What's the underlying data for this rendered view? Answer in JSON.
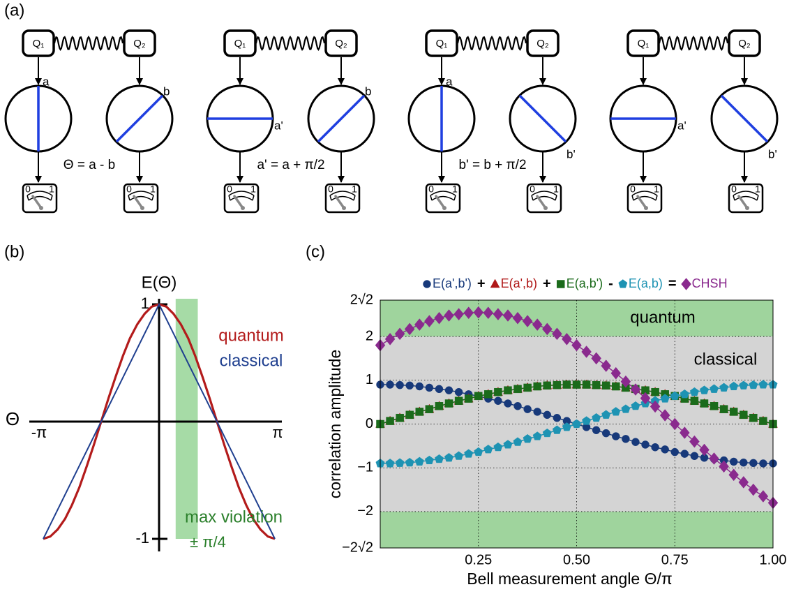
{
  "figure": {
    "panel_labels": [
      "(a)",
      "(b)",
      "(c)"
    ]
  },
  "diagram": {
    "qubits": [
      "Q₁",
      "Q₂"
    ],
    "meter_labels": [
      "0",
      "1"
    ],
    "setups": [
      {
        "left": "a",
        "right": "b"
      },
      {
        "left": "a'",
        "right": "b"
      },
      {
        "left": "a",
        "right": "b'"
      },
      {
        "left": "a'",
        "right": "b'"
      }
    ],
    "equations": [
      "Θ = a - b",
      "a' = a + π/2",
      "b' = b + π/2"
    ]
  },
  "chart_data": [
    {
      "type": "curve",
      "title": "E(Θ)",
      "xlabel": "Θ",
      "xlim": [
        -3.14,
        3.14
      ],
      "ylim": [
        -1,
        1
      ],
      "xticks": [
        {
          "value": -3.14,
          "label": "-π"
        },
        {
          "value": 3.14,
          "label": "π"
        }
      ],
      "yticks": [
        1,
        -1
      ],
      "band": {
        "x": [
          0.45,
          1.05
        ],
        "color": "#a6dba6",
        "label": "max violation",
        "sublabel": "± π/4",
        "label_color": "#2a7f2a"
      },
      "series": [
        {
          "name": "quantum",
          "color": "#b31b1b",
          "x": [
            -3.14,
            -2.95,
            -2.75,
            -2.55,
            -2.36,
            -2.16,
            -1.96,
            -1.77,
            -1.57,
            -1.37,
            -1.18,
            -0.98,
            -0.79,
            -0.59,
            -0.39,
            -0.2,
            0,
            0.2,
            0.39,
            0.59,
            0.79,
            0.98,
            1.18,
            1.37,
            1.57,
            1.77,
            1.96,
            2.16,
            2.36,
            2.55,
            2.75,
            2.95,
            3.14
          ],
          "values": [
            -1,
            -0.98,
            -0.92,
            -0.83,
            -0.71,
            -0.56,
            -0.38,
            -0.2,
            0,
            0.2,
            0.38,
            0.56,
            0.71,
            0.83,
            0.92,
            0.98,
            1,
            0.98,
            0.92,
            0.83,
            0.71,
            0.56,
            0.38,
            0.2,
            0,
            -0.2,
            -0.38,
            -0.56,
            -0.71,
            -0.83,
            -0.92,
            -0.98,
            -1
          ]
        },
        {
          "name": "classical",
          "color": "#1f3f8f",
          "x": [
            -3.14,
            0,
            3.14
          ],
          "values": [
            -1,
            1,
            -1
          ]
        }
      ]
    },
    {
      "type": "line",
      "xlabel": "Bell measurement angle Θ/π",
      "ylabel": "correlation amplitude",
      "xlim": [
        0,
        1
      ],
      "ylim": [
        -2.83,
        2.83
      ],
      "xticks": [
        0.25,
        {
          "value": 0.5,
          "label": "0.50"
        },
        0.75,
        {
          "value": 1,
          "label": "1.00"
        }
      ],
      "yticks": [
        {
          "value": -2.83,
          "label": "−2√2"
        },
        {
          "value": -2,
          "label": "−2"
        },
        {
          "value": -1,
          "label": "−1"
        },
        0,
        1,
        2,
        {
          "value": 2.83,
          "label": "2√2"
        }
      ],
      "grid": true,
      "regions": [
        {
          "range": [
            2,
            2.83
          ],
          "color": "#9fd49d",
          "label": "quantum"
        },
        {
          "range": [
            -2,
            2
          ],
          "color": "#d4d4d4",
          "label": "classical"
        },
        {
          "range": [
            -2.83,
            -2
          ],
          "color": "#9fd49d"
        }
      ],
      "legend_operators": [
        "+",
        "+",
        "-",
        "="
      ],
      "x": [
        0,
        0.025,
        0.05,
        0.075,
        0.1,
        0.125,
        0.15,
        0.175,
        0.2,
        0.225,
        0.25,
        0.275,
        0.3,
        0.325,
        0.35,
        0.375,
        0.4,
        0.425,
        0.45,
        0.475,
        0.5,
        0.525,
        0.55,
        0.575,
        0.6,
        0.625,
        0.65,
        0.675,
        0.7,
        0.725,
        0.75,
        0.775,
        0.8,
        0.825,
        0.85,
        0.875,
        0.9,
        0.925,
        0.95,
        0.975,
        1
      ],
      "series": [
        {
          "name": "E(a',b')",
          "color": "#17397a",
          "marker": "circle",
          "values": [
            0.9,
            0.9,
            0.89,
            0.88,
            0.86,
            0.83,
            0.8,
            0.77,
            0.73,
            0.68,
            0.64,
            0.58,
            0.53,
            0.47,
            0.41,
            0.34,
            0.28,
            0.21,
            0.14,
            0.07,
            0,
            -0.07,
            -0.14,
            -0.21,
            -0.28,
            -0.34,
            -0.41,
            -0.47,
            -0.53,
            -0.58,
            -0.64,
            -0.68,
            -0.73,
            -0.77,
            -0.8,
            -0.83,
            -0.86,
            -0.88,
            -0.89,
            -0.9,
            -0.9
          ]
        },
        {
          "name": "E(a',b)",
          "color": "#b01818",
          "marker": "triangle",
          "values": [
            0,
            0.07,
            0.14,
            0.21,
            0.28,
            0.34,
            0.41,
            0.47,
            0.53,
            0.58,
            0.64,
            0.68,
            0.73,
            0.77,
            0.8,
            0.83,
            0.86,
            0.88,
            0.89,
            0.9,
            0.9,
            0.9,
            0.89,
            0.88,
            0.86,
            0.83,
            0.8,
            0.77,
            0.73,
            0.68,
            0.64,
            0.58,
            0.53,
            0.47,
            0.41,
            0.34,
            0.28,
            0.21,
            0.14,
            0.07,
            0
          ]
        },
        {
          "name": "E(a,b')",
          "color": "#1b6b1b",
          "marker": "square",
          "values": [
            0,
            0.07,
            0.14,
            0.21,
            0.28,
            0.34,
            0.41,
            0.47,
            0.53,
            0.58,
            0.64,
            0.68,
            0.73,
            0.77,
            0.8,
            0.83,
            0.86,
            0.88,
            0.89,
            0.9,
            0.9,
            0.9,
            0.89,
            0.88,
            0.86,
            0.83,
            0.8,
            0.77,
            0.73,
            0.68,
            0.64,
            0.58,
            0.53,
            0.47,
            0.41,
            0.34,
            0.28,
            0.21,
            0.14,
            0.07,
            0
          ]
        },
        {
          "name": "E(a,b)",
          "color": "#1e93b3",
          "marker": "pentagon",
          "values": [
            -0.9,
            -0.9,
            -0.89,
            -0.88,
            -0.86,
            -0.83,
            -0.8,
            -0.77,
            -0.73,
            -0.68,
            -0.64,
            -0.58,
            -0.53,
            -0.47,
            -0.41,
            -0.34,
            -0.28,
            -0.21,
            -0.14,
            -0.07,
            0,
            0.07,
            0.14,
            0.21,
            0.28,
            0.34,
            0.41,
            0.47,
            0.53,
            0.58,
            0.64,
            0.68,
            0.73,
            0.77,
            0.8,
            0.83,
            0.86,
            0.88,
            0.89,
            0.9,
            0.9
          ]
        },
        {
          "name": "CHSH",
          "color": "#8a2a8e",
          "marker": "diamond",
          "values": [
            1.8,
            1.94,
            2.06,
            2.17,
            2.27,
            2.35,
            2.42,
            2.48,
            2.51,
            2.54,
            2.55,
            2.54,
            2.51,
            2.48,
            2.42,
            2.35,
            2.27,
            2.17,
            2.06,
            1.94,
            1.8,
            1.65,
            1.5,
            1.33,
            1.16,
            0.97,
            0.79,
            0.59,
            0.4,
            0.2,
            0,
            -0.2,
            -0.4,
            -0.59,
            -0.79,
            -0.97,
            -1.16,
            -1.33,
            -1.5,
            -1.65,
            -1.8
          ]
        }
      ]
    }
  ]
}
